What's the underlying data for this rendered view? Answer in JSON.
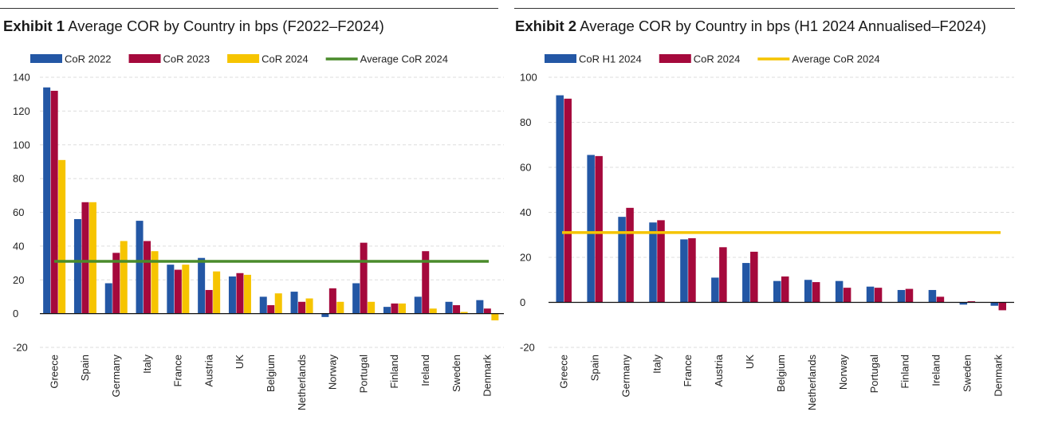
{
  "colors": {
    "blue": "#2357a5",
    "red": "#a5093c",
    "yellow": "#f6c400",
    "green": "#4a8b2b",
    "avg_yellow": "#f5c400",
    "grid": "#dddddd"
  },
  "chart_data": [
    {
      "type": "bar",
      "exhibit": "Exhibit 1",
      "title": "Average COR by Country in bps (F2022–F2024)",
      "xlabel": "",
      "ylabel": "",
      "ylim": [
        -20,
        140
      ],
      "yticks": [
        -20,
        0,
        20,
        40,
        60,
        80,
        100,
        120,
        140
      ],
      "categories": [
        "Greece",
        "Spain",
        "Germany",
        "Italy",
        "France",
        "Austria",
        "UK",
        "Belgium",
        "Netherlands",
        "Norway",
        "Portugal",
        "Finland",
        "Ireland",
        "Sweden",
        "Denmark"
      ],
      "series": [
        {
          "name": "CoR 2022",
          "color": "#2357a5",
          "values": [
            134,
            56,
            18,
            55,
            29,
            33,
            22,
            10,
            13,
            -2,
            18,
            4,
            10,
            7,
            8
          ]
        },
        {
          "name": "CoR 2023",
          "color": "#a5093c",
          "values": [
            132,
            66,
            36,
            43,
            26,
            14,
            24,
            5,
            7,
            15,
            42,
            6,
            37,
            5,
            3
          ]
        },
        {
          "name": "CoR 2024",
          "color": "#f6c400",
          "values": [
            91,
            66,
            43,
            37,
            29,
            25,
            23,
            12,
            9,
            7,
            7,
            6,
            3,
            1,
            -4
          ]
        }
      ],
      "average_line": {
        "name": "Average CoR 2024",
        "value": 31,
        "color": "#4a8b2b"
      },
      "legend_position": "top-left",
      "grid": true
    },
    {
      "type": "bar",
      "exhibit": "Exhibit 2",
      "title": "Average COR by Country in bps (H1 2024 Annualised–F2024)",
      "xlabel": "",
      "ylabel": "",
      "ylim": [
        -20,
        100
      ],
      "yticks": [
        -20,
        0,
        20,
        40,
        60,
        80,
        100
      ],
      "categories": [
        "Greece",
        "Spain",
        "Germany",
        "Italy",
        "France",
        "Austria",
        "UK",
        "Belgium",
        "Netherlands",
        "Norway",
        "Portugal",
        "Finland",
        "Ireland",
        "Sweden",
        "Denmark"
      ],
      "series": [
        {
          "name": "CoR H1 2024",
          "color": "#2357a5",
          "values": [
            92,
            65.5,
            38,
            35.5,
            28,
            11,
            17.5,
            9.5,
            10,
            9.5,
            7,
            5.5,
            5.5,
            -1,
            -1.5
          ]
        },
        {
          "name": "CoR 2024",
          "color": "#a5093c",
          "values": [
            90.5,
            65,
            42,
            36.5,
            28.5,
            24.5,
            22.5,
            11.5,
            9,
            6.5,
            6.5,
            6,
            2.5,
            0.5,
            -3.5
          ]
        }
      ],
      "average_line": {
        "name": "Average CoR 2024",
        "value": 31,
        "color": "#f5c400"
      },
      "legend_position": "top-left",
      "grid": true
    }
  ]
}
